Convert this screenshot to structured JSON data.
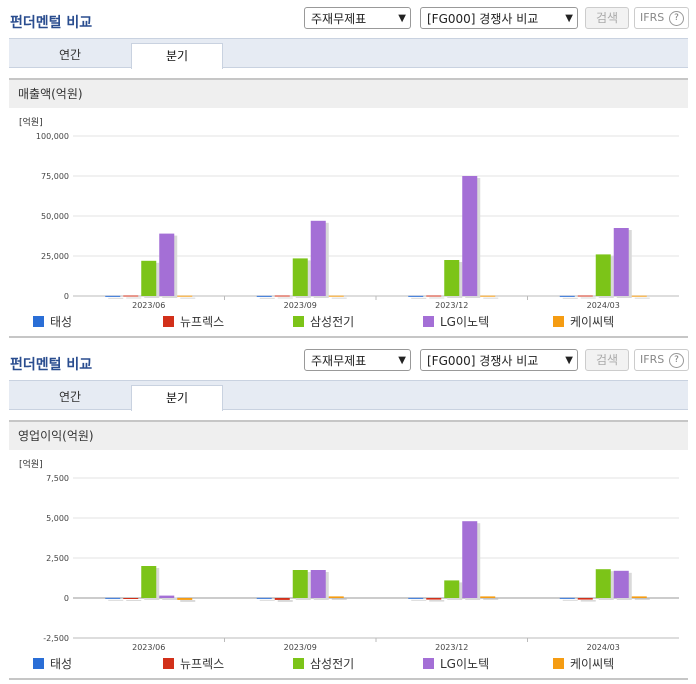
{
  "panels": [
    {
      "title": "펀더멘털 비교",
      "select1": "주재무제표",
      "select2": "[FG000] 경쟁사 비교",
      "search_label": "검색",
      "ifrs_label": "IFRS",
      "ifrs_help": "?",
      "tabs": [
        {
          "label": "연간"
        },
        {
          "label": "분기"
        }
      ],
      "active_tab": 1,
      "section_title": "매출액(억원)",
      "unit": "[억원]"
    },
    {
      "title": "펀더멘털 비교",
      "select1": "주재무제표",
      "select2": "[FG000] 경쟁사 비교",
      "search_label": "검색",
      "ifrs_label": "IFRS",
      "ifrs_help": "?",
      "tabs": [
        {
          "label": "연간"
        },
        {
          "label": "분기"
        }
      ],
      "active_tab": 1,
      "section_title": "영업이익(억원)",
      "unit": "[억원]"
    }
  ],
  "legend": [
    {
      "name": "태성",
      "color": "#2a6ed6"
    },
    {
      "name": "뉴프렉스",
      "color": "#d2301a"
    },
    {
      "name": "삼성전기",
      "color": "#7cc418"
    },
    {
      "name": "LG이노텍",
      "color": "#a46fd6"
    },
    {
      "name": "케이씨텍",
      "color": "#f59c12"
    }
  ],
  "chart_data": [
    {
      "type": "bar",
      "ylabel": "[억원]",
      "categories": [
        "2023/06",
        "2023/09",
        "2023/12",
        "2024/03"
      ],
      "ylim": [
        0,
        100000
      ],
      "yticks": [
        0,
        25000,
        50000,
        75000,
        100000
      ],
      "ytick_labels": [
        "0",
        "25,000",
        "50,000",
        "75,000",
        "100,000"
      ],
      "series": [
        {
          "name": "태성",
          "values": [
            100,
            100,
            100,
            100
          ]
        },
        {
          "name": "뉴프렉스",
          "values": [
            300,
            300,
            300,
            300
          ]
        },
        {
          "name": "삼성전기",
          "values": [
            22000,
            23500,
            22500,
            26000
          ]
        },
        {
          "name": "LG이노텍",
          "values": [
            39000,
            47000,
            75000,
            42500
          ]
        },
        {
          "name": "케이씨텍",
          "values": [
            200,
            200,
            200,
            200
          ]
        }
      ]
    },
    {
      "type": "bar",
      "ylabel": "[억원]",
      "categories": [
        "2023/06",
        "2023/09",
        "2023/12",
        "2024/03"
      ],
      "ylim": [
        -2500,
        7500
      ],
      "yticks": [
        -2500,
        0,
        2500,
        5000,
        7500
      ],
      "ytick_labels": [
        "-2,500",
        "0",
        "2,500",
        "5,000",
        "7,500"
      ],
      "series": [
        {
          "name": "태성",
          "values": [
            10,
            10,
            10,
            10
          ]
        },
        {
          "name": "뉴프렉스",
          "values": [
            -20,
            -120,
            -100,
            -100
          ]
        },
        {
          "name": "삼성전기",
          "values": [
            2000,
            1750,
            1100,
            1800
          ]
        },
        {
          "name": "LG이노텍",
          "values": [
            150,
            1750,
            4800,
            1700
          ]
        },
        {
          "name": "케이씨텍",
          "values": [
            -120,
            100,
            100,
            100
          ]
        }
      ]
    }
  ]
}
